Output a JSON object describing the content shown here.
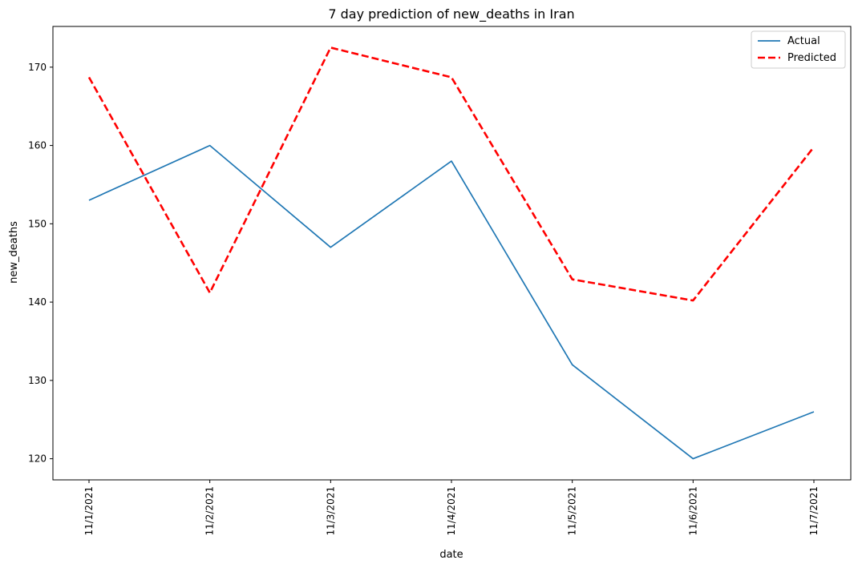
{
  "chart_data": {
    "type": "line",
    "title": "7 day prediction of new_deaths in Iran",
    "xlabel": "date",
    "ylabel": "new_deaths",
    "categories": [
      "11/1/2021",
      "11/2/2021",
      "11/3/2021",
      "11/4/2021",
      "11/5/2021",
      "11/6/2021",
      "11/7/2021"
    ],
    "ylim": [
      117.3,
      175.2
    ],
    "yticks": [
      120,
      130,
      140,
      150,
      160,
      170
    ],
    "grid": false,
    "legend_position": "top-right",
    "series": [
      {
        "name": "Actual",
        "color": "#1f77b4",
        "style": "solid",
        "values": [
          153,
          160,
          147,
          158,
          132,
          120,
          126
        ]
      },
      {
        "name": "Predicted",
        "color": "#ff0000",
        "style": "dashed",
        "values": [
          168.7,
          141.2,
          172.5,
          168.7,
          142.9,
          140.2,
          159.8
        ]
      }
    ]
  }
}
